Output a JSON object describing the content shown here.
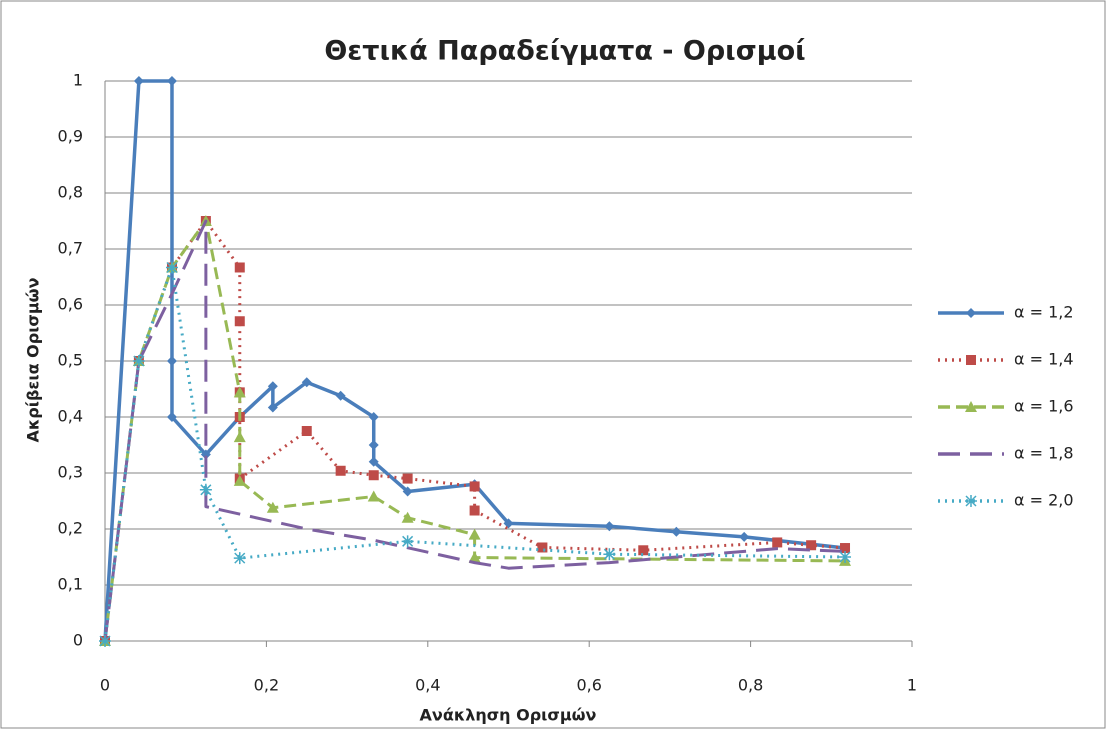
{
  "chart_data": {
    "type": "line",
    "title": "Θετικά Παραδείγματα - Ορισμοί",
    "x_label": "Ανάκληση Ορισμών",
    "y_label": "Ακρίβεια Ορισμών",
    "xlim": [
      0,
      1
    ],
    "ylim": [
      0,
      1
    ],
    "xticks": [
      0,
      {
        "value": 0.2,
        "label": "0,2"
      },
      {
        "value": 0.4,
        "label": "0,4"
      },
      {
        "value": 0.6,
        "label": "0,6"
      },
      {
        "value": 0.8,
        "label": "0,8"
      },
      1
    ],
    "yticks": [
      0,
      {
        "value": 0.1,
        "label": "0,1"
      },
      {
        "value": 0.2,
        "label": "0,2"
      },
      {
        "value": 0.3,
        "label": "0,3"
      },
      {
        "value": 0.4,
        "label": "0,4"
      },
      {
        "value": 0.5,
        "label": "0,5"
      },
      {
        "value": 0.6,
        "label": "0,6"
      },
      {
        "value": 0.7,
        "label": "0,7"
      },
      {
        "value": 0.8,
        "label": "0,8"
      },
      {
        "value": 0.9,
        "label": "0,9"
      },
      1
    ],
    "grid": true,
    "legend": "right",
    "series": [
      {
        "name": "α = 1,2",
        "color": "#4a7ebb",
        "marker": "diamond",
        "dash": "solid",
        "x": [
          0,
          0.042,
          0.083,
          0.083,
          0.083,
          0.125,
          0.167,
          0.208,
          0.208,
          0.25,
          0.292,
          0.333,
          0.333,
          0.333,
          0.375,
          0.458,
          0.5,
          0.625,
          0.708,
          0.792,
          0.917
        ],
        "values": [
          0,
          1,
          1,
          0.5,
          0.4,
          0.333,
          0.4,
          0.455,
          0.417,
          0.462,
          0.438,
          0.4,
          0.35,
          0.32,
          0.267,
          0.28,
          0.21,
          0.205,
          0.195,
          0.186,
          0.166
        ]
      },
      {
        "name": "α = 1,4",
        "color": "#be4b48",
        "marker": "square",
        "dash": "dot",
        "x": [
          0,
          0.042,
          0.083,
          0.125,
          0.167,
          0.167,
          0.167,
          0.167,
          0.167,
          0.25,
          0.292,
          0.333,
          0.375,
          0.458,
          0.458,
          0.542,
          0.667,
          0.833,
          0.875,
          0.917
        ],
        "values": [
          0,
          0.5,
          0.667,
          0.75,
          0.667,
          0.571,
          0.444,
          0.4,
          0.29,
          0.375,
          0.304,
          0.296,
          0.29,
          0.276,
          0.233,
          0.167,
          0.162,
          0.176,
          0.171,
          0.166
        ]
      },
      {
        "name": "α = 1,6",
        "color": "#98b954",
        "marker": "triangle",
        "dash": "dash",
        "x": [
          0,
          0.042,
          0.083,
          0.125,
          0.167,
          0.167,
          0.167,
          0.208,
          0.333,
          0.375,
          0.458,
          0.458,
          0.917
        ],
        "values": [
          0,
          0.5,
          0.667,
          0.75,
          0.444,
          0.364,
          0.286,
          0.238,
          0.258,
          0.22,
          0.19,
          0.149,
          0.143
        ]
      },
      {
        "name": "α = 1,8",
        "color": "#7d60a0",
        "marker": "none",
        "dash": "longdash",
        "x": [
          0,
          0.042,
          0.083,
          0.125,
          0.125,
          0.25,
          0.333,
          0.458,
          0.5,
          0.625,
          0.833,
          0.917
        ],
        "values": [
          0,
          0.5,
          0.62,
          0.75,
          0.24,
          0.2,
          0.18,
          0.14,
          0.13,
          0.14,
          0.165,
          0.16
        ]
      },
      {
        "name": "α = 2,0",
        "color": "#46aac5",
        "marker": "star",
        "dash": "dot",
        "x": [
          0,
          0.042,
          0.083,
          0.125,
          0.167,
          0.375,
          0.625,
          0.917
        ],
        "values": [
          0,
          0.5,
          0.667,
          0.27,
          0.148,
          0.178,
          0.155,
          0.15
        ]
      }
    ]
  }
}
